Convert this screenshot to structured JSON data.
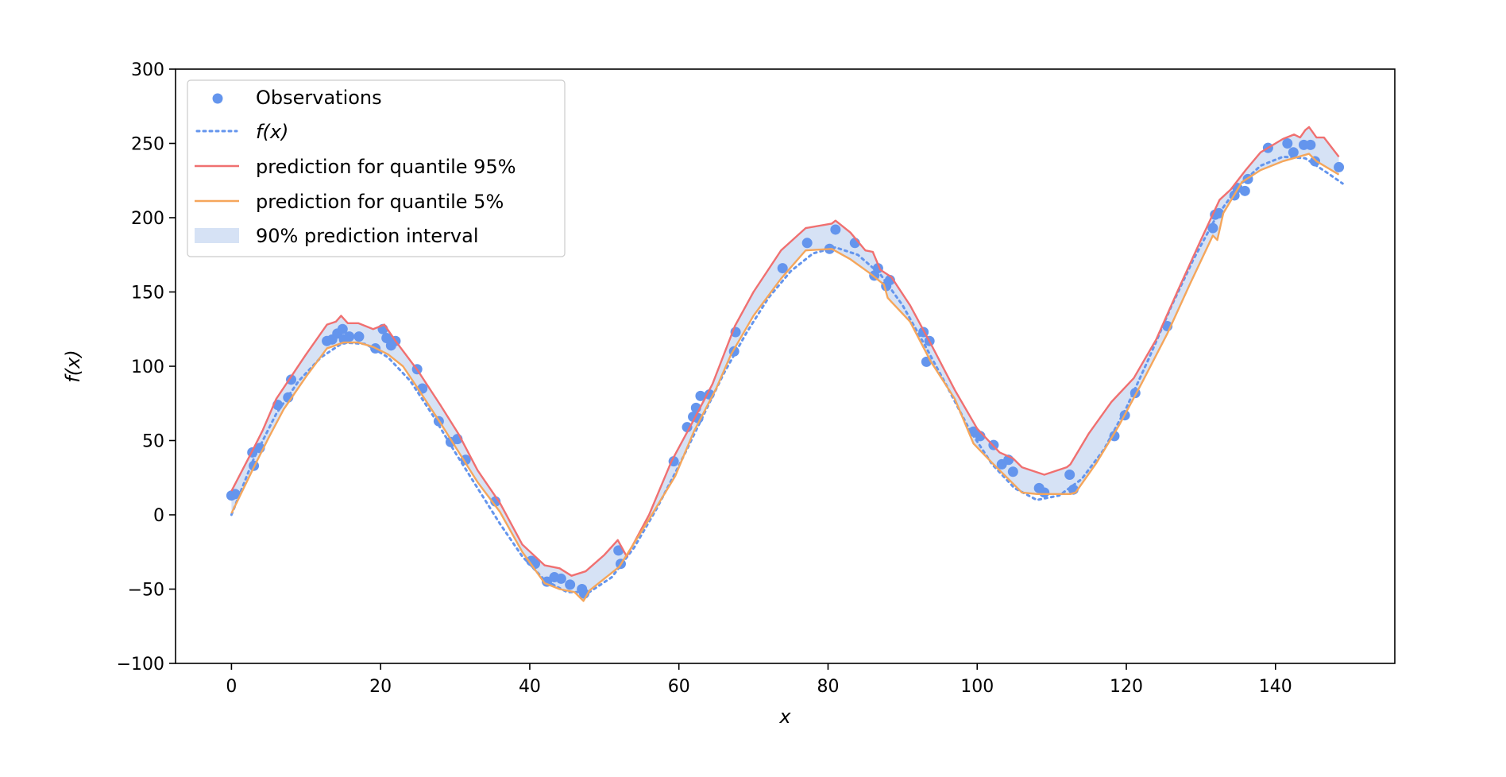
{
  "chart_data": {
    "type": "line",
    "title": "",
    "xlabel": "x",
    "ylabel": "f(x)",
    "xlim": [
      -7.5,
      156
    ],
    "ylim": [
      -100,
      300
    ],
    "xticks": [
      0,
      20,
      40,
      60,
      80,
      100,
      120,
      140
    ],
    "yticks": [
      -100,
      -50,
      0,
      50,
      100,
      150,
      200,
      250,
      300
    ],
    "xtick_labels": [
      "0",
      "20",
      "40",
      "60",
      "80",
      "100",
      "120",
      "140"
    ],
    "ytick_labels": [
      "−100",
      "−50",
      "0",
      "50",
      "100",
      "150",
      "200",
      "250",
      "300"
    ],
    "grid": false,
    "legend_position": "top-left",
    "legend": [
      {
        "key": "obs",
        "label": "Observations"
      },
      {
        "key": "fx",
        "label": "f(x)"
      },
      {
        "key": "q95",
        "label": "prediction for quantile 95%"
      },
      {
        "key": "q5",
        "label": "prediction for quantile 5%"
      },
      {
        "key": "band",
        "label": "90% prediction interval"
      }
    ],
    "colors": {
      "obs": "#6495ed",
      "fx": "#6495ed",
      "q95": "#f07070",
      "q5": "#f5a65b",
      "band": "#d6e2f5",
      "axis": "#000000"
    },
    "series": [
      {
        "key": "obs",
        "type": "scatter",
        "points": [
          [
            0,
            13
          ],
          [
            0.5,
            14
          ],
          [
            2.8,
            42
          ],
          [
            3,
            33
          ],
          [
            3.8,
            45
          ],
          [
            6.2,
            74
          ],
          [
            7.6,
            79
          ],
          [
            8,
            91
          ],
          [
            12.8,
            117
          ],
          [
            13.5,
            118
          ],
          [
            14.2,
            122
          ],
          [
            14.9,
            125
          ],
          [
            15.1,
            118
          ],
          [
            15.8,
            120
          ],
          [
            17.1,
            120
          ],
          [
            19.3,
            112
          ],
          [
            20.3,
            125
          ],
          [
            20.8,
            119
          ],
          [
            21.4,
            114
          ],
          [
            22,
            117
          ],
          [
            24.9,
            98
          ],
          [
            25.6,
            85
          ],
          [
            27.8,
            63
          ],
          [
            29.4,
            49
          ],
          [
            30.3,
            51
          ],
          [
            31.4,
            37
          ],
          [
            35.4,
            9
          ],
          [
            40.2,
            -31
          ],
          [
            40.7,
            -33
          ],
          [
            42.3,
            -45
          ],
          [
            43.3,
            -42
          ],
          [
            44.2,
            -43
          ],
          [
            45.4,
            -47
          ],
          [
            47,
            -50
          ],
          [
            47.3,
            -53
          ],
          [
            51.9,
            -24
          ],
          [
            52.2,
            -33
          ],
          [
            59.3,
            36
          ],
          [
            61.1,
            59
          ],
          [
            61.9,
            66
          ],
          [
            62.3,
            72
          ],
          [
            62.6,
            65
          ],
          [
            62.9,
            80
          ],
          [
            64.1,
            81
          ],
          [
            67.4,
            110
          ],
          [
            67.6,
            123
          ],
          [
            73.9,
            166
          ],
          [
            77.2,
            183
          ],
          [
            80.2,
            179
          ],
          [
            81,
            192
          ],
          [
            83.6,
            183
          ],
          [
            86.2,
            161
          ],
          [
            86.7,
            166
          ],
          [
            87.8,
            154
          ],
          [
            88.3,
            158
          ],
          [
            92.8,
            123
          ],
          [
            93.2,
            103
          ],
          [
            93.6,
            117
          ],
          [
            99.5,
            56
          ],
          [
            100.4,
            53
          ],
          [
            102.2,
            47
          ],
          [
            103.3,
            34
          ],
          [
            104.2,
            37
          ],
          [
            104.8,
            29
          ],
          [
            108.3,
            18
          ],
          [
            109,
            15
          ],
          [
            112.4,
            27
          ],
          [
            112.9,
            17
          ],
          [
            118.4,
            53
          ],
          [
            119.8,
            67
          ],
          [
            121.2,
            82
          ],
          [
            125.5,
            127
          ],
          [
            131.6,
            193
          ],
          [
            131.9,
            202
          ],
          [
            132.4,
            203
          ],
          [
            134.5,
            215
          ],
          [
            134.9,
            220
          ],
          [
            135.9,
            218
          ],
          [
            136.3,
            226
          ],
          [
            139,
            247
          ],
          [
            141.6,
            250
          ],
          [
            142.4,
            244
          ],
          [
            143.8,
            249
          ],
          [
            144.7,
            249
          ],
          [
            145.3,
            238
          ],
          [
            148.5,
            234
          ]
        ]
      },
      {
        "key": "fx",
        "type": "line",
        "style": "dotted",
        "points": [
          [
            0,
            0
          ],
          [
            3,
            38
          ],
          [
            6,
            68
          ],
          [
            9,
            90
          ],
          [
            12,
            106
          ],
          [
            15,
            116
          ],
          [
            18,
            115
          ],
          [
            21,
            106
          ],
          [
            24,
            90
          ],
          [
            27,
            67
          ],
          [
            30,
            42
          ],
          [
            33,
            18
          ],
          [
            36,
            -6
          ],
          [
            39,
            -28
          ],
          [
            42,
            -44
          ],
          [
            45,
            -52
          ],
          [
            48,
            -52
          ],
          [
            51,
            -42
          ],
          [
            54,
            -22
          ],
          [
            57,
            4
          ],
          [
            60,
            33
          ],
          [
            63,
            64
          ],
          [
            66,
            95
          ],
          [
            69,
            122
          ],
          [
            72,
            146
          ],
          [
            75,
            164
          ],
          [
            78,
            176
          ],
          [
            81,
            180
          ],
          [
            84,
            175
          ],
          [
            87,
            162
          ],
          [
            90,
            141
          ],
          [
            93,
            114
          ],
          [
            96,
            86
          ],
          [
            99,
            57
          ],
          [
            102,
            34
          ],
          [
            105,
            18
          ],
          [
            108,
            10
          ],
          [
            111,
            13
          ],
          [
            114,
            24
          ],
          [
            117,
            44
          ],
          [
            120,
            72
          ],
          [
            123,
            105
          ],
          [
            126,
            140
          ],
          [
            129,
            172
          ],
          [
            132,
            200
          ],
          [
            135,
            221
          ],
          [
            138,
            235
          ],
          [
            141,
            241
          ],
          [
            144,
            240
          ],
          [
            147,
            230
          ],
          [
            149,
            223
          ]
        ]
      },
      {
        "key": "q95",
        "type": "line",
        "style": "solid",
        "points": [
          [
            0,
            16
          ],
          [
            3,
            45
          ],
          [
            4.2,
            57
          ],
          [
            6,
            78
          ],
          [
            8,
            93
          ],
          [
            10,
            108
          ],
          [
            12.8,
            128
          ],
          [
            14,
            130
          ],
          [
            14.7,
            134
          ],
          [
            15.6,
            129
          ],
          [
            17,
            129
          ],
          [
            19,
            125
          ],
          [
            20.5,
            128
          ],
          [
            22,
            117
          ],
          [
            25,
            97
          ],
          [
            28,
            74
          ],
          [
            30.5,
            54
          ],
          [
            33,
            30
          ],
          [
            36,
            8
          ],
          [
            39,
            -20
          ],
          [
            42,
            -34
          ],
          [
            44,
            -36
          ],
          [
            45.6,
            -41
          ],
          [
            47.5,
            -38
          ],
          [
            50,
            -27
          ],
          [
            51.8,
            -17
          ],
          [
            53,
            -28
          ],
          [
            56,
            0
          ],
          [
            59,
            36
          ],
          [
            62,
            64
          ],
          [
            64.5,
            88
          ],
          [
            67.5,
            127
          ],
          [
            70,
            150
          ],
          [
            73.7,
            178
          ],
          [
            77,
            193
          ],
          [
            80.5,
            196
          ],
          [
            81,
            198
          ],
          [
            83,
            190
          ],
          [
            85,
            178
          ],
          [
            86,
            177
          ],
          [
            87,
            165
          ],
          [
            88.5,
            160
          ],
          [
            91,
            141
          ],
          [
            94,
            113
          ],
          [
            97,
            84
          ],
          [
            100,
            58
          ],
          [
            103,
            42
          ],
          [
            104.8,
            38
          ],
          [
            106,
            32
          ],
          [
            109,
            27
          ],
          [
            112,
            32
          ],
          [
            112.5,
            34
          ],
          [
            115,
            55
          ],
          [
            118,
            76
          ],
          [
            121,
            92
          ],
          [
            124,
            118
          ],
          [
            127,
            152
          ],
          [
            130,
            185
          ],
          [
            132.5,
            212
          ],
          [
            134,
            219
          ],
          [
            136,
            232
          ],
          [
            138,
            244
          ],
          [
            141,
            253
          ],
          [
            142.5,
            256
          ],
          [
            143.3,
            254
          ],
          [
            144,
            259
          ],
          [
            144.5,
            261
          ],
          [
            145.5,
            254
          ],
          [
            146.5,
            254
          ],
          [
            148.5,
            241
          ]
        ]
      },
      {
        "key": "q5",
        "type": "line",
        "style": "solid",
        "points": [
          [
            0,
            1
          ],
          [
            3,
            32
          ],
          [
            5,
            52
          ],
          [
            7,
            71
          ],
          [
            10,
            93
          ],
          [
            12.8,
            112
          ],
          [
            15,
            116
          ],
          [
            17,
            116
          ],
          [
            19,
            113
          ],
          [
            21,
            108
          ],
          [
            23,
            100
          ],
          [
            25,
            85
          ],
          [
            28,
            62
          ],
          [
            30.5,
            42
          ],
          [
            33,
            22
          ],
          [
            36,
            2
          ],
          [
            39,
            -25
          ],
          [
            42,
            -46
          ],
          [
            44,
            -50
          ],
          [
            46,
            -52
          ],
          [
            47.2,
            -58
          ],
          [
            48,
            -51
          ],
          [
            52,
            -35
          ],
          [
            56,
            -3
          ],
          [
            59.5,
            26
          ],
          [
            62,
            56
          ],
          [
            65,
            85
          ],
          [
            67,
            108
          ],
          [
            70,
            134
          ],
          [
            73.7,
            159
          ],
          [
            77,
            178
          ],
          [
            80.5,
            179
          ],
          [
            83,
            172
          ],
          [
            85.5,
            163
          ],
          [
            87.5,
            155
          ],
          [
            88,
            146
          ],
          [
            91,
            130
          ],
          [
            93.8,
            103
          ],
          [
            97,
            78
          ],
          [
            99.5,
            48
          ],
          [
            102,
            35
          ],
          [
            104,
            25
          ],
          [
            106,
            15
          ],
          [
            108,
            14
          ],
          [
            110,
            14
          ],
          [
            112.5,
            14
          ],
          [
            113.2,
            15
          ],
          [
            116,
            35
          ],
          [
            119,
            60
          ],
          [
            122,
            88
          ],
          [
            125.5,
            122
          ],
          [
            128.5,
            155
          ],
          [
            131.6,
            188
          ],
          [
            132.2,
            185
          ],
          [
            133,
            203
          ],
          [
            135.5,
            224
          ],
          [
            138,
            232
          ],
          [
            141,
            238
          ],
          [
            144.5,
            243
          ],
          [
            145.5,
            238
          ],
          [
            148.5,
            229
          ]
        ]
      }
    ]
  }
}
